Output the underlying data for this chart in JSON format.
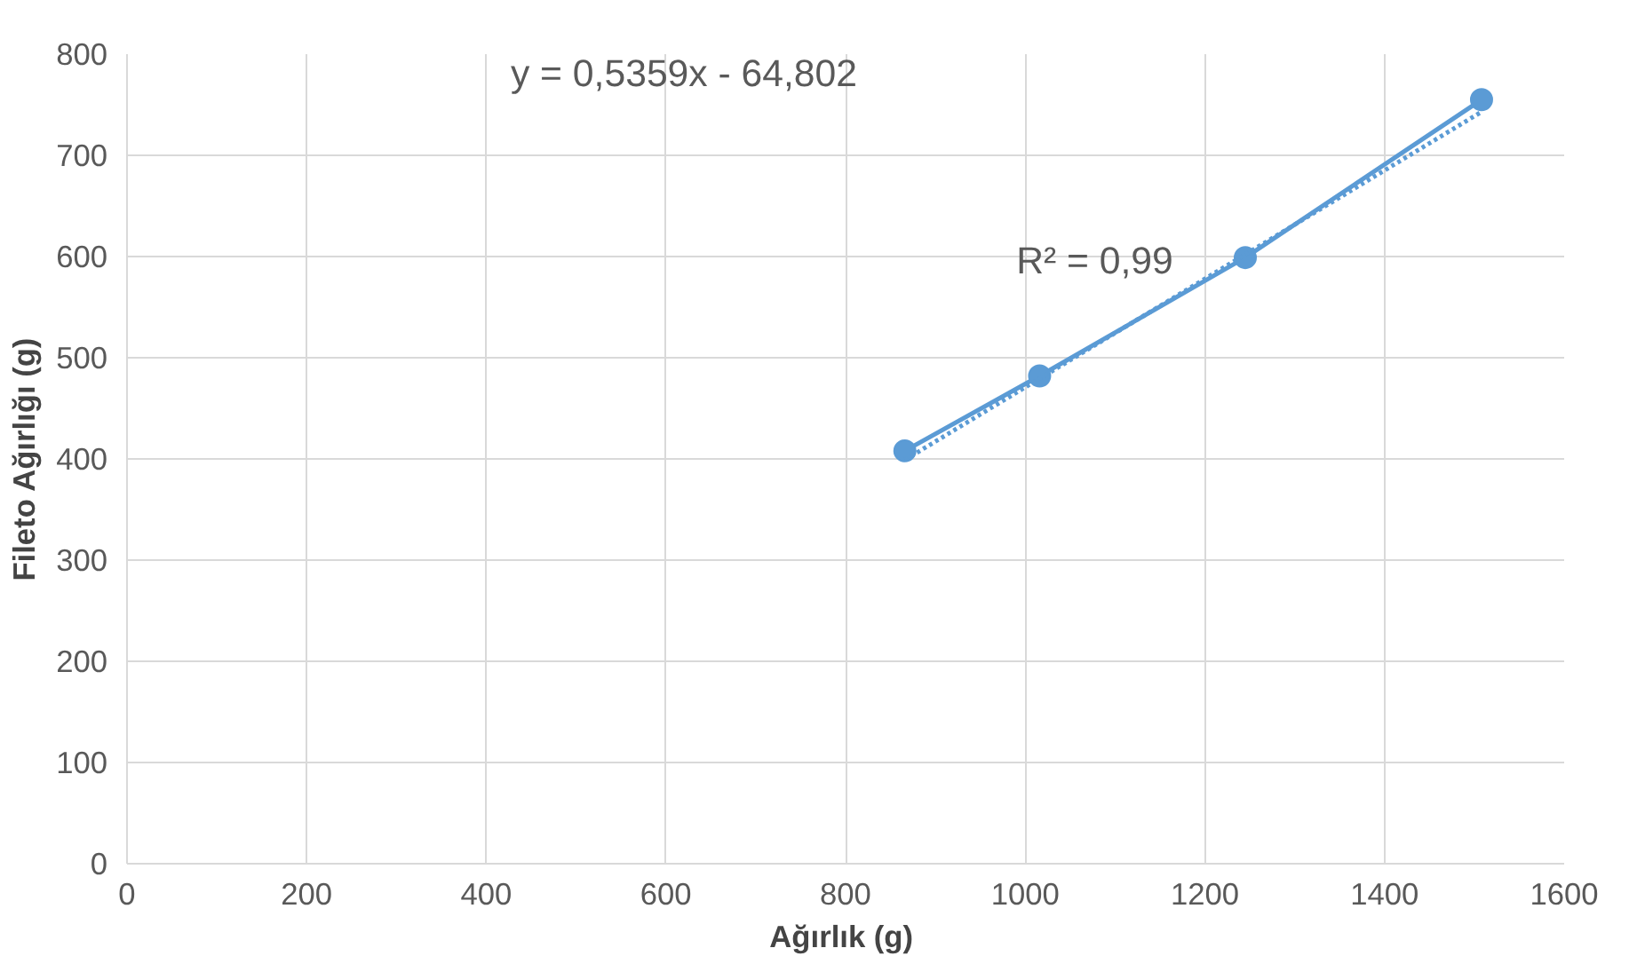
{
  "chart_data": {
    "type": "line",
    "xlabel": "Ağırlık  (g)",
    "ylabel": "Fileto Ağırlığı (g)",
    "series": [
      {
        "color": "#5b9bd5",
        "x": [
          866,
          1016,
          1245,
          1508
        ],
        "values": [
          408,
          482,
          599,
          755
        ],
        "marker": "circle",
        "line_style": "solid"
      },
      {
        "type": "line",
        "color": "#5b9bd5",
        "x": [
          866,
          1508
        ],
        "values": [
          399,
          743
        ],
        "marker": "none",
        "line_style": "dotted"
      }
    ],
    "annotations": [
      "y = 0,5359x - 64,802",
      "R² = 0,99"
    ],
    "xlim": [
      0,
      1600
    ],
    "xticks": [
      0,
      200,
      400,
      600,
      800,
      1000,
      1200,
      1400,
      1600
    ],
    "ylim": [
      0,
      800
    ],
    "yticks": [
      0,
      100,
      200,
      300,
      400,
      500,
      600,
      700,
      800
    ],
    "grid": true
  }
}
